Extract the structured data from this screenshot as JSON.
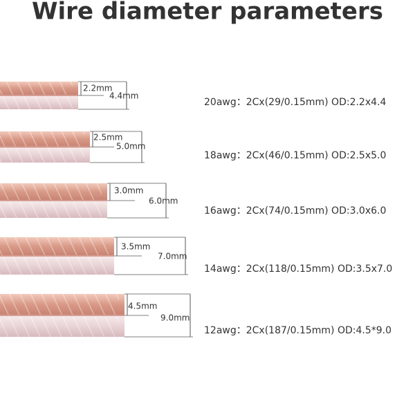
{
  "title": "Wire diameter parameters",
  "wires": [
    {
      "half": "2.2mm",
      "full": "4.4mm",
      "spec": "20awg：2Cx(29/0.15mm) OD:2.2x4.4"
    },
    {
      "half": "2.5mm",
      "full": "5.0mm",
      "spec": "18awg：2Cx(46/0.15mm) OD:2.5x5.0"
    },
    {
      "half": "3.0mm",
      "full": "6.0mm",
      "spec": "16awg：2Cx(74/0.15mm)  OD:3.0x6.0"
    },
    {
      "half": "3.5mm",
      "full": "7.0mm",
      "spec": "14awg：2Cx(118/0.15mm) OD:3.5x7.0"
    },
    {
      "half": "4.5mm",
      "full": "9.0mm",
      "spec": "12awg：2Cx(187/0.15mm) OD:4.5*9.0"
    }
  ]
}
